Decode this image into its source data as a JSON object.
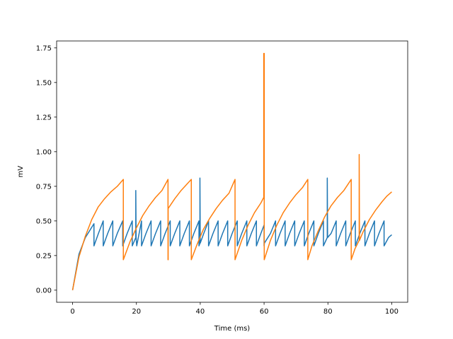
{
  "chart_data": {
    "type": "line",
    "title": "",
    "xlabel": "Time (ms)",
    "ylabel": "mV",
    "xlim": [
      -5,
      105
    ],
    "ylim": [
      -0.0875,
      1.8
    ],
    "xticks": [
      0,
      20,
      40,
      60,
      80,
      100
    ],
    "xtick_labels": [
      "0",
      "20",
      "40",
      "60",
      "80",
      "100"
    ],
    "yticks": [
      0,
      0.25,
      0.5,
      0.75,
      1.0,
      1.25,
      1.5,
      1.75
    ],
    "ytick_labels": [
      "0.00",
      "0.25",
      "0.50",
      "0.75",
      "1.00",
      "1.25",
      "1.50",
      "1.75"
    ],
    "grid": false,
    "legend": "none",
    "series": [
      {
        "color": "#1f77b4",
        "x": [
          0,
          2,
          4,
          6.7,
          6.7,
          8.1,
          9.6,
          9.6,
          11.0,
          12.6,
          12.6,
          14.0,
          15.7,
          15.7,
          17.1,
          18.7,
          18.7,
          19.8,
          19.8,
          19.9,
          20.1,
          21.6,
          21.6,
          23.0,
          24.6,
          24.6,
          26.0,
          27.6,
          27.6,
          29.0,
          30.6,
          30.6,
          32.0,
          33.6,
          33.6,
          35.0,
          36.6,
          36.6,
          38.0,
          39.6,
          39.6,
          39.9,
          39.9,
          40.0,
          41.1,
          42.6,
          42.6,
          44.0,
          45.6,
          45.6,
          47.0,
          48.6,
          48.6,
          50.0,
          51.6,
          51.6,
          53.0,
          54.6,
          54.6,
          56.0,
          57.6,
          57.6,
          59.0,
          60.0,
          60.0,
          60.1,
          62.0,
          63.6,
          63.6,
          65.0,
          66.6,
          66.6,
          68.0,
          69.6,
          69.6,
          71.0,
          72.6,
          72.6,
          74.0,
          75.6,
          75.6,
          77.0,
          78.6,
          78.6,
          79.8,
          79.8,
          79.9,
          81.0,
          82.6,
          82.6,
          84.0,
          85.6,
          85.6,
          87.0,
          88.6,
          88.6,
          90.0,
          91.6,
          91.6,
          93.0,
          94.6,
          94.6,
          96.0,
          97.6,
          97.6,
          99.0,
          100.0
        ],
        "y": [
          0,
          0.26,
          0.38,
          0.48,
          0.32,
          0.41,
          0.5,
          0.32,
          0.41,
          0.5,
          0.32,
          0.41,
          0.5,
          0.32,
          0.41,
          0.5,
          0.32,
          0.38,
          0.72,
          0.38,
          0.32,
          0.5,
          0.32,
          0.41,
          0.5,
          0.32,
          0.41,
          0.5,
          0.32,
          0.41,
          0.5,
          0.32,
          0.41,
          0.5,
          0.32,
          0.41,
          0.5,
          0.32,
          0.41,
          0.5,
          0.32,
          0.34,
          0.81,
          0.34,
          0.41,
          0.5,
          0.32,
          0.41,
          0.5,
          0.32,
          0.41,
          0.5,
          0.32,
          0.41,
          0.5,
          0.32,
          0.41,
          0.5,
          0.32,
          0.41,
          0.5,
          0.32,
          0.41,
          0.47,
          0.32,
          0.34,
          0.41,
          0.5,
          0.32,
          0.41,
          0.5,
          0.32,
          0.41,
          0.5,
          0.32,
          0.41,
          0.5,
          0.32,
          0.41,
          0.5,
          0.32,
          0.41,
          0.5,
          0.32,
          0.38,
          0.81,
          0.38,
          0.41,
          0.5,
          0.32,
          0.41,
          0.5,
          0.32,
          0.41,
          0.5,
          0.32,
          0.41,
          0.5,
          0.32,
          0.41,
          0.5,
          0.32,
          0.41,
          0.5,
          0.32,
          0.38,
          0.4
        ]
      },
      {
        "color": "#ff7f0e",
        "x": [
          0,
          2,
          4,
          6,
          8,
          10,
          12,
          14,
          15.9,
          15.9,
          18,
          20,
          22,
          24,
          26,
          28,
          29.9,
          29.9,
          29.95,
          29.95,
          32,
          34,
          36,
          37.2,
          37.2,
          39,
          41,
          43,
          45,
          47,
          49,
          50.9,
          50.9,
          53,
          55,
          57,
          59,
          59.9,
          59.9,
          60.0,
          60.05,
          60.05,
          62,
          64,
          66,
          68,
          70,
          72,
          73.7,
          73.7,
          75,
          77,
          79,
          81,
          83,
          85,
          87.3,
          87.3,
          88.5,
          89.8,
          89.8,
          89.9,
          91,
          93,
          95,
          97,
          98.5,
          100.0
        ],
        "y": [
          0,
          0.24,
          0.39,
          0.51,
          0.6,
          0.66,
          0.71,
          0.75,
          0.8,
          0.22,
          0.35,
          0.45,
          0.54,
          0.61,
          0.67,
          0.72,
          0.8,
          0.22,
          0.22,
          0.59,
          0.66,
          0.72,
          0.77,
          0.8,
          0.22,
          0.33,
          0.44,
          0.52,
          0.59,
          0.65,
          0.7,
          0.8,
          0.22,
          0.36,
          0.47,
          0.56,
          0.63,
          0.67,
          1.71,
          1.71,
          1.71,
          0.22,
          0.36,
          0.47,
          0.56,
          0.63,
          0.69,
          0.74,
          0.8,
          0.22,
          0.32,
          0.43,
          0.53,
          0.61,
          0.67,
          0.72,
          0.8,
          0.22,
          0.3,
          0.36,
          0.98,
          0.36,
          0.42,
          0.51,
          0.58,
          0.64,
          0.68,
          0.71
        ]
      }
    ]
  }
}
